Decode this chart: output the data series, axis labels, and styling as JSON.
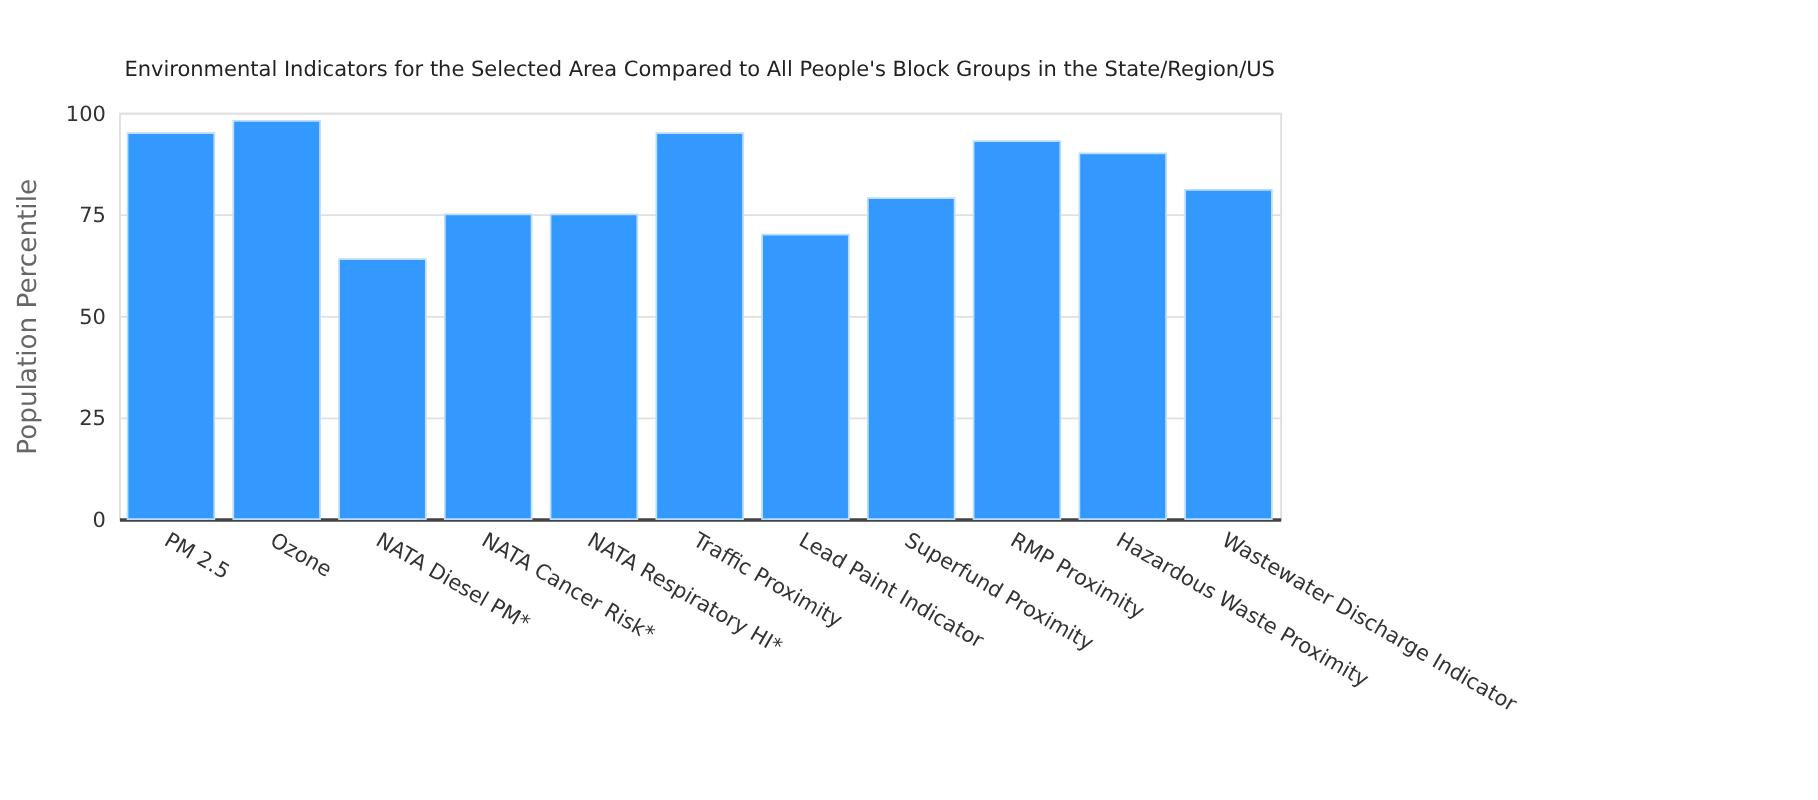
{
  "chart_data": {
    "type": "bar",
    "title": "Environmental Indicators for the Selected Area Compared to All People's Block Groups in the State/Region/US",
    "ylabel": "Population Percentile",
    "categories": [
      "PM 2.5",
      "Ozone",
      "NATA Diesel PM*",
      "NATA Cancer Risk*",
      "NATA Respiratory HI*",
      "Traffic Proximity",
      "Lead Paint Indicator",
      "Superfund Proximity",
      "RMP Proximity",
      "Hazardous Waste Proximity",
      "Wastewater Discharge Indicator"
    ],
    "values": [
      95,
      98,
      64,
      75,
      75,
      95,
      70,
      79,
      93,
      90,
      81
    ],
    "color": "#3399ff",
    "ylim": [
      0,
      100
    ],
    "yticks": [
      0,
      25,
      50,
      75,
      100
    ],
    "grid": "y"
  }
}
